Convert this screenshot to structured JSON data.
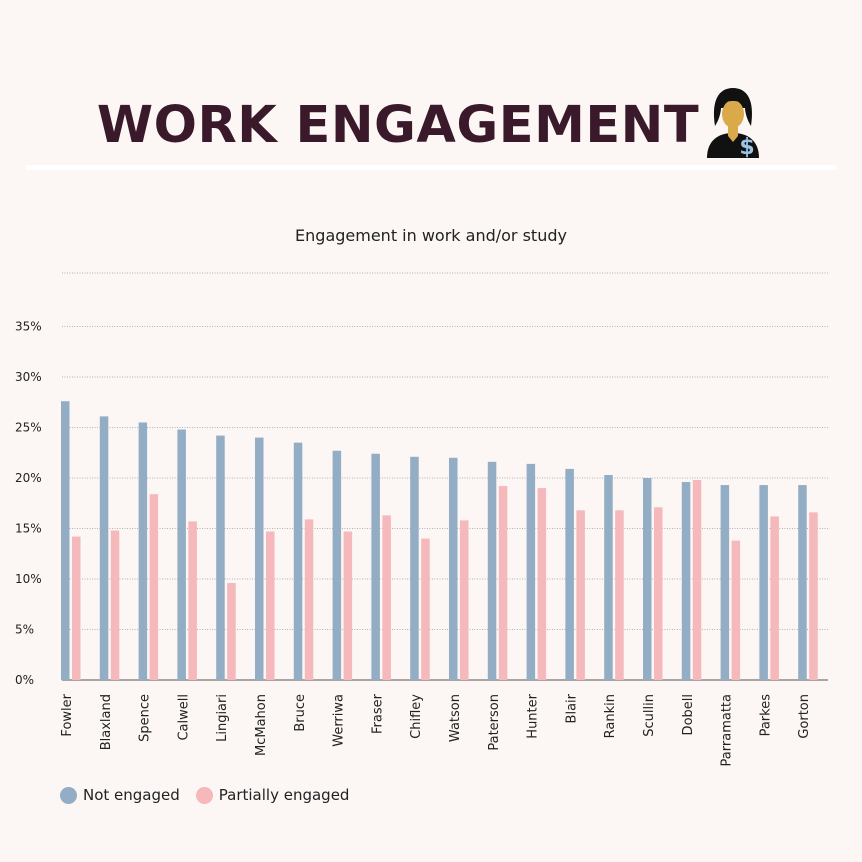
{
  "header": {
    "title": "WORK ENGAGEMENT",
    "icon": "businesswoman-dollar-icon"
  },
  "chart_data": {
    "type": "bar",
    "title": "Engagement in work and/or study",
    "xlabel": "",
    "ylabel": "",
    "ylim": [
      0,
      35
    ],
    "yticks": [
      "0%",
      "5%",
      "10%",
      "15%",
      "20%",
      "25%",
      "30%",
      "35%"
    ],
    "grid": true,
    "legend_position": "bottom-left",
    "categories": [
      "Fowler",
      "Blaxland",
      "Spence",
      "Calwell",
      "Lingiari",
      "McMahon",
      "Bruce",
      "Werriwa",
      "Fraser",
      "Chifley",
      "Watson",
      "Paterson",
      "Hunter",
      "Blair",
      "Rankin",
      "Scullin",
      "Dobell",
      "Parramatta",
      "Parkes",
      "Gorton"
    ],
    "series": [
      {
        "name": "Not engaged",
        "color": "#92adc4",
        "values": [
          27.6,
          26.1,
          25.5,
          24.8,
          24.2,
          24.0,
          23.5,
          22.7,
          22.4,
          22.1,
          22.0,
          21.6,
          21.4,
          20.9,
          20.3,
          20.0,
          19.6,
          19.3,
          19.3,
          19.3
        ]
      },
      {
        "name": "Partially engaged",
        "color": "#f5b8bb",
        "values": [
          14.2,
          14.8,
          18.4,
          15.7,
          9.6,
          14.7,
          15.9,
          14.7,
          16.3,
          14.0,
          15.8,
          19.2,
          19.0,
          16.8,
          16.8,
          17.1,
          19.8,
          13.8,
          16.2,
          16.6
        ]
      }
    ]
  }
}
